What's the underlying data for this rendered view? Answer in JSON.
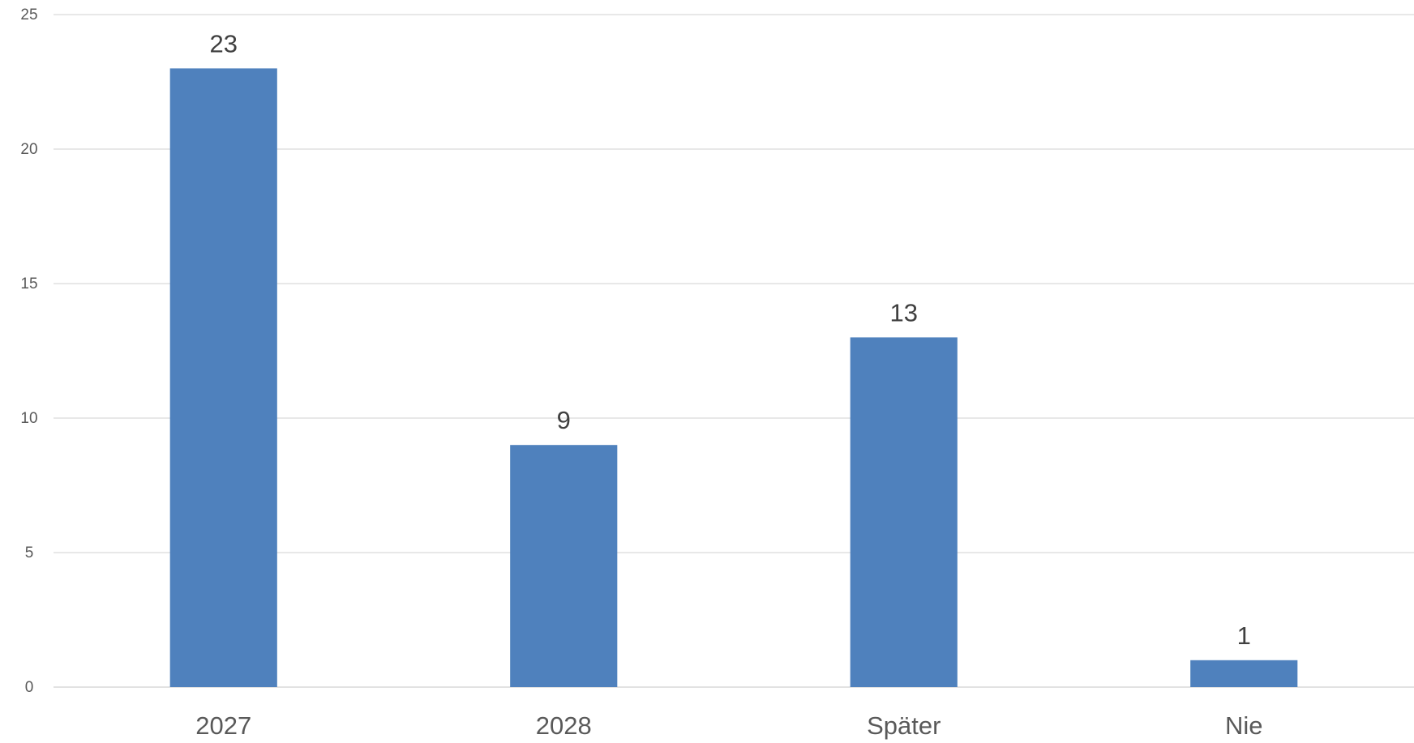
{
  "colors": {
    "bar": "#4f81bd",
    "gridline": "#d9d9d9",
    "tick_text": "#595959",
    "label_text": "#404040",
    "background": "#ffffff"
  },
  "chart_data": {
    "type": "bar",
    "categories": [
      "2027",
      "2028",
      "Später",
      "Nie"
    ],
    "values": [
      23,
      9,
      13,
      1
    ],
    "y_ticks": [
      "0",
      "5",
      "10",
      "15",
      "20",
      "25"
    ],
    "data_labels": [
      "23",
      "9",
      "13",
      "1"
    ],
    "title": "",
    "xlabel": "",
    "ylabel": "",
    "ylim": [
      0,
      25
    ],
    "grid": true,
    "legend": "none"
  }
}
